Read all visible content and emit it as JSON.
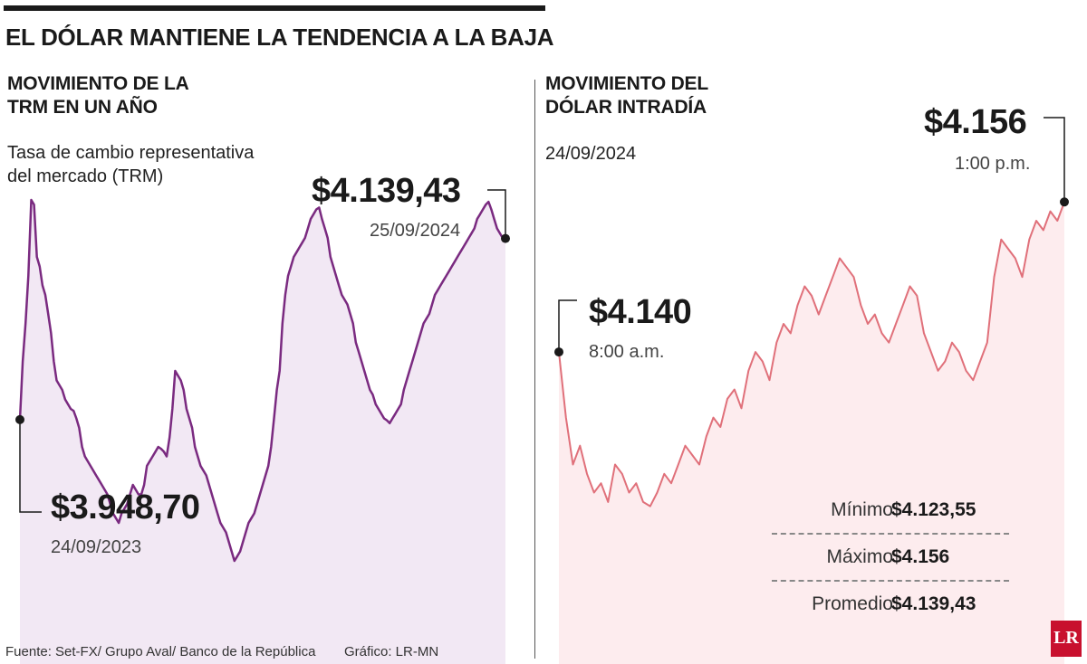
{
  "headline": "EL DÓLAR MANTIENE LA TENDENCIA A LA BAJA",
  "footer": {
    "source": "Fuente: Set-FX/ Grupo Aval/ Banco de la República",
    "credit": "Gráfico: LR-MN"
  },
  "logo": "LR",
  "colors": {
    "left_line": "#7a2a80",
    "left_fill": "#f2e8f4",
    "right_line": "#e0707a",
    "right_fill": "#fdecee"
  },
  "chart_data": [
    {
      "type": "area",
      "title_lines": [
        "MOVIMIENTO DE LA",
        "TRM EN UN AÑO"
      ],
      "subtitle_lines": [
        "Tasa de cambio representativa",
        "del mercado (TRM)"
      ],
      "start": {
        "value": "$3.948,70",
        "date": "24/09/2023"
      },
      "end": {
        "value": "$4.139,43",
        "date": "25/09/2024"
      },
      "ylim": [
        3800,
        4200
      ],
      "values": [
        3948.7,
        4010,
        4050,
        4100,
        4180,
        4175,
        4120,
        4110,
        4090,
        4080,
        4060,
        4040,
        4010,
        3990,
        3985,
        3980,
        3970,
        3965,
        3960,
        3958,
        3950,
        3940,
        3920,
        3910,
        3905,
        3900,
        3895,
        3890,
        3885,
        3880,
        3875,
        3870,
        3860,
        3850,
        3845,
        3840,
        3850,
        3855,
        3860,
        3870,
        3880,
        3875,
        3870,
        3870,
        3880,
        3900,
        3905,
        3910,
        3915,
        3920,
        3918,
        3915,
        3910,
        3930,
        3960,
        4000,
        3995,
        3990,
        3980,
        3960,
        3950,
        3940,
        3920,
        3910,
        3900,
        3895,
        3890,
        3880,
        3870,
        3860,
        3850,
        3840,
        3835,
        3830,
        3820,
        3810,
        3800,
        3805,
        3810,
        3820,
        3830,
        3840,
        3845,
        3850,
        3860,
        3870,
        3880,
        3890,
        3900,
        3920,
        3950,
        3980,
        4000,
        4050,
        4080,
        4100,
        4110,
        4120,
        4125,
        4130,
        4135,
        4140,
        4150,
        4160,
        4165,
        4170,
        4172,
        4160,
        4150,
        4140,
        4120,
        4110,
        4100,
        4090,
        4080,
        4075,
        4070,
        4060,
        4050,
        4030,
        4020,
        4010,
        4000,
        3990,
        3980,
        3975,
        3965,
        3960,
        3955,
        3950,
        3948,
        3945,
        3950,
        3955,
        3960,
        3965,
        3980,
        3990,
        4000,
        4010,
        4020,
        4030,
        4040,
        4050,
        4055,
        4060,
        4070,
        4080,
        4085,
        4090,
        4095,
        4100,
        4105,
        4110,
        4115,
        4120,
        4125,
        4130,
        4135,
        4140,
        4145,
        4150,
        4160,
        4165,
        4170,
        4175,
        4178,
        4170,
        4160,
        4150,
        4145,
        4140,
        4139.43
      ]
    },
    {
      "type": "area",
      "title_lines": [
        "MOVIMIENTO DEL",
        "DÓLAR INTRADÍA"
      ],
      "date": "24/09/2024",
      "open": {
        "value": "$4.140",
        "time": "8:00 a.m."
      },
      "close": {
        "value": "$4.156",
        "time": "1:00 p.m."
      },
      "ylim": [
        4110,
        4165
      ],
      "values": [
        4140,
        4133,
        4128,
        4130,
        4127,
        4125,
        4126,
        4124,
        4128,
        4127,
        4125,
        4126,
        4124,
        4123.55,
        4125,
        4127,
        4126,
        4128,
        4130,
        4129,
        4128,
        4131,
        4133,
        4132,
        4135,
        4136,
        4134,
        4138,
        4140,
        4139,
        4137,
        4141,
        4143,
        4142,
        4145,
        4147,
        4146,
        4144,
        4146,
        4148,
        4150,
        4149,
        4148,
        4145,
        4143,
        4144,
        4142,
        4141,
        4143,
        4145,
        4147,
        4146,
        4142,
        4140,
        4138,
        4139,
        4141,
        4140,
        4138,
        4137,
        4139,
        4141,
        4148,
        4152,
        4151,
        4150,
        4148,
        4152,
        4154,
        4153,
        4155,
        4154,
        4156
      ]
    }
  ],
  "stats": [
    {
      "label": "Mínimo",
      "value": "$4.123,55"
    },
    {
      "label": "Máximo",
      "value": "$4.156"
    },
    {
      "label": "Promedio",
      "value": "$4.139,43"
    }
  ]
}
